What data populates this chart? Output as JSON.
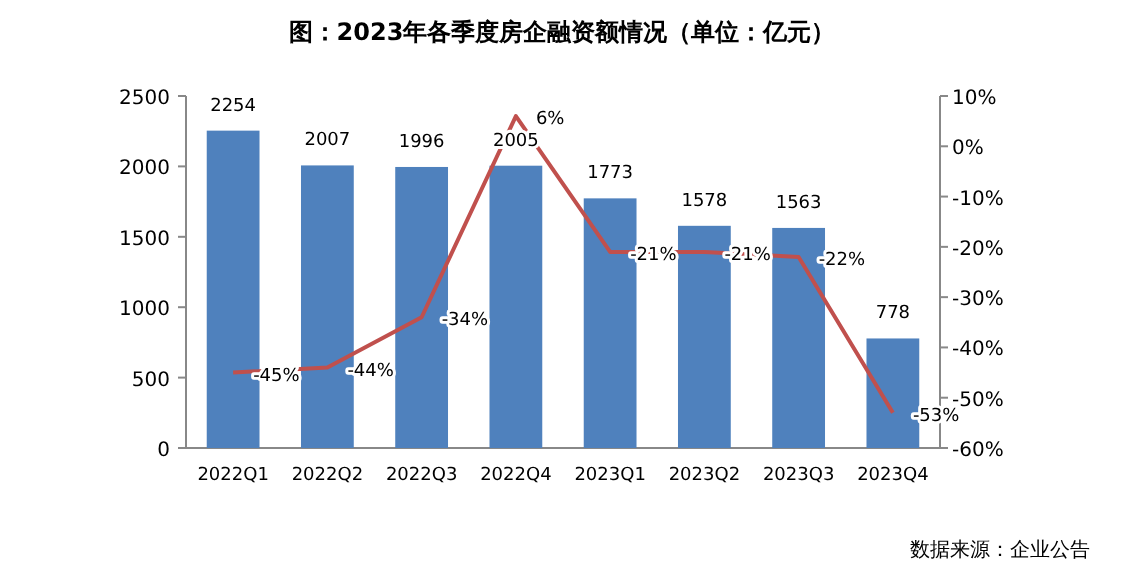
{
  "chart_data": {
    "type": "bar",
    "title": "图：2023年各季度房企融资额情况（单位：亿元）",
    "categories": [
      "2022Q1",
      "2022Q2",
      "2022Q3",
      "2022Q4",
      "2023Q1",
      "2023Q2",
      "2023Q3",
      "2023Q4"
    ],
    "series": [
      {
        "color": "#4f81bd",
        "values": [
          2254,
          2007,
          1996,
          2005,
          1773,
          1578,
          1563,
          778
        ],
        "value_labels": [
          "2254",
          "2007",
          "1996",
          "2005",
          "1773",
          "1578",
          "1563",
          "778"
        ]
      },
      {
        "type": "line",
        "axis": "y2",
        "color": "#c0504d",
        "values": [
          -45,
          -44,
          -34,
          6,
          -21,
          -21,
          -22,
          -53
        ],
        "value_labels": [
          "-45%",
          "-44%",
          "-34%",
          "6%",
          "-21%",
          "-21%",
          "-22%",
          "-53%"
        ]
      }
    ],
    "ylim": [
      0,
      2500
    ],
    "yticks": [
      0,
      500,
      1000,
      1500,
      2000,
      2500
    ],
    "y2lim": [
      -60,
      10
    ],
    "y2ticks": [
      {
        "value": -60,
        "label": "-60%"
      },
      {
        "value": -50,
        "label": "-50%"
      },
      {
        "value": -40,
        "label": "-40%"
      },
      {
        "value": -30,
        "label": "-30%"
      },
      {
        "value": -20,
        "label": "-20%"
      },
      {
        "value": -10,
        "label": "-10%"
      },
      {
        "value": 0,
        "label": "0%"
      },
      {
        "value": 10,
        "label": "10%"
      }
    ],
    "grid": false,
    "annotations": [
      "数据来源：企业公告"
    ]
  }
}
